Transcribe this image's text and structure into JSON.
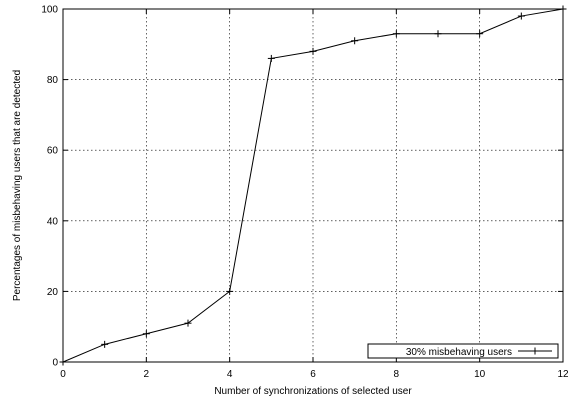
{
  "chart_data": {
    "type": "line",
    "xlabel": "Number of synchronizations of selected user",
    "ylabel": "Percentages of misbehaving users that are detected",
    "xlim": [
      0,
      12
    ],
    "ylim": [
      0,
      100
    ],
    "x_ticks": [
      "0",
      "2",
      "4",
      "6",
      "8",
      "10",
      "12"
    ],
    "y_ticks": [
      "0",
      "20",
      "40",
      "60",
      "80",
      "100"
    ],
    "grid": true,
    "legend_position": "bottom-right",
    "series": [
      {
        "name": "30% misbehaving users",
        "color": "#000000",
        "marker": "plus",
        "x": [
          0,
          1,
          2,
          3,
          4,
          5,
          6,
          7,
          8,
          9,
          10,
          11,
          12
        ],
        "y": [
          0,
          5,
          8,
          11,
          20,
          86,
          88,
          91,
          93,
          93,
          93,
          98,
          100
        ]
      }
    ]
  }
}
